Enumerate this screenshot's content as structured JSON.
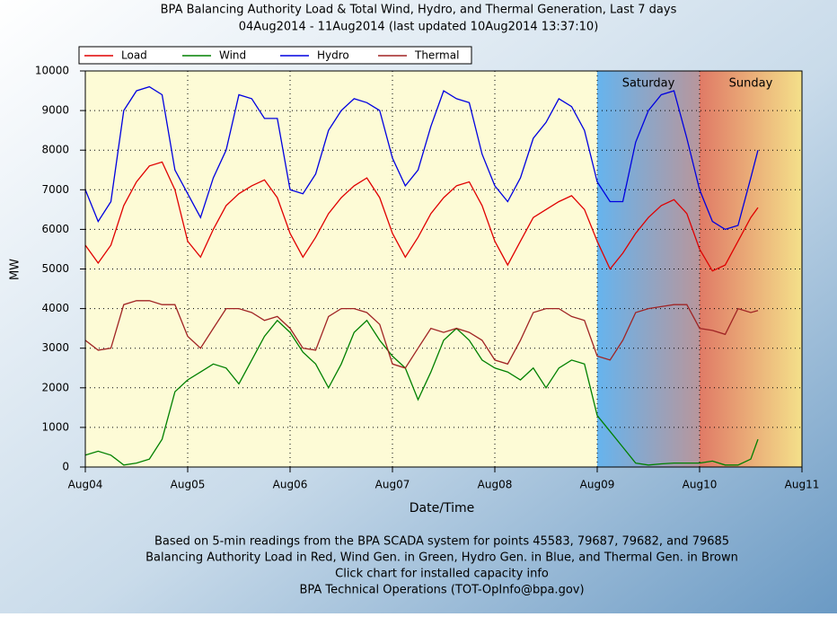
{
  "chart_data": {
    "type": "line",
    "title": "BPA Balancing Authority Load & Total Wind, Hydro, and Thermal Generation, Last 7 days",
    "subtitle": "04Aug2014 - 11Aug2014 (last updated 10Aug2014 13:37:10)",
    "x_label": "Date/Time",
    "y_label": "MW",
    "notes": [
      "Based on 5-min readings from the BPA SCADA system for points 45583, 79687, 79682, and 79685",
      "Balancing Authority Load in Red, Wind Gen. in Green, Hydro Gen. in Blue, and Thermal Gen. in Brown",
      "Click chart for installed capacity info",
      "BPA Technical Operations (TOT-OpInfo@bpa.gov)"
    ],
    "legend": "top",
    "grid": true,
    "xlim": [
      0,
      7
    ],
    "xticks": [
      {
        "value": 0,
        "label": "Aug04"
      },
      {
        "value": 1,
        "label": "Aug05"
      },
      {
        "value": 2,
        "label": "Aug06"
      },
      {
        "value": 3,
        "label": "Aug07"
      },
      {
        "value": 4,
        "label": "Aug08"
      },
      {
        "value": 5,
        "label": "Aug09"
      },
      {
        "value": 6,
        "label": "Aug10"
      },
      {
        "value": 7,
        "label": "Aug11"
      }
    ],
    "ylim": [
      0,
      10000
    ],
    "yticks": [
      0,
      1000,
      2000,
      3000,
      4000,
      5000,
      6000,
      7000,
      8000,
      9000,
      10000
    ],
    "shaded": [
      {
        "label": "Saturday",
        "x": [
          5,
          6
        ],
        "colors": [
          "#66b4ee",
          "#b8969c"
        ]
      },
      {
        "label": "Sunday",
        "x": [
          6,
          7
        ],
        "colors": [
          "#e07a66",
          "#f4e08a"
        ]
      }
    ],
    "x": [
      0,
      0.125,
      0.25,
      0.375,
      0.5,
      0.625,
      0.75,
      0.875,
      1,
      1.125,
      1.25,
      1.375,
      1.5,
      1.625,
      1.75,
      1.875,
      2,
      2.125,
      2.25,
      2.375,
      2.5,
      2.625,
      2.75,
      2.875,
      3,
      3.125,
      3.25,
      3.375,
      3.5,
      3.625,
      3.75,
      3.875,
      4,
      4.125,
      4.25,
      4.375,
      4.5,
      4.625,
      4.75,
      4.875,
      5,
      5.125,
      5.25,
      5.375,
      5.5,
      5.625,
      5.75,
      5.875,
      6,
      6.125,
      6.25,
      6.375,
      6.5,
      6.57
    ],
    "series": [
      {
        "name": "Load",
        "color": "#e00000",
        "values": [
          5600,
          5150,
          5600,
          6600,
          7200,
          7600,
          7700,
          7000,
          5700,
          5300,
          6000,
          6600,
          6900,
          7100,
          7250,
          6800,
          5900,
          5300,
          5800,
          6400,
          6800,
          7100,
          7300,
          6800,
          5900,
          5300,
          5800,
          6400,
          6800,
          7100,
          7200,
          6600,
          5700,
          5100,
          5700,
          6300,
          6500,
          6700,
          6850,
          6500,
          5700,
          5000,
          5400,
          5900,
          6300,
          6600,
          6750,
          6400,
          5500,
          4950,
          5100,
          5700,
          6300,
          6550
        ]
      },
      {
        "name": "Wind",
        "color": "#008000",
        "values": [
          300,
          400,
          300,
          50,
          100,
          200,
          700,
          1900,
          2200,
          2400,
          2600,
          2500,
          2100,
          2700,
          3300,
          3700,
          3400,
          2900,
          2600,
          2000,
          2600,
          3400,
          3700,
          3200,
          2800,
          2500,
          1700,
          2400,
          3200,
          3500,
          3200,
          2700,
          2500,
          2400,
          2200,
          2500,
          2000,
          2500,
          2700,
          2600,
          1300,
          900,
          500,
          100,
          50,
          80,
          100,
          100,
          100,
          150,
          50,
          50,
          200,
          700
        ]
      },
      {
        "name": "Hydro",
        "color": "#0000e0",
        "values": [
          7000,
          6200,
          6700,
          9000,
          9500,
          9600,
          9400,
          7500,
          6900,
          6300,
          7300,
          8000,
          9400,
          9300,
          8800,
          8800,
          7000,
          6900,
          7400,
          8500,
          9000,
          9300,
          9200,
          9000,
          7800,
          7100,
          7500,
          8600,
          9500,
          9300,
          9200,
          7900,
          7100,
          6700,
          7300,
          8300,
          8700,
          9300,
          9100,
          8500,
          7200,
          6700,
          6700,
          8200,
          9000,
          9400,
          9500,
          8300,
          7000,
          6200,
          6000,
          6100,
          7300,
          8000
        ]
      },
      {
        "name": "Thermal",
        "color": "#a02424",
        "values": [
          3200,
          2950,
          3000,
          4100,
          4200,
          4200,
          4100,
          4100,
          3300,
          3000,
          3500,
          4000,
          4000,
          3900,
          3700,
          3800,
          3500,
          3000,
          2950,
          3800,
          4000,
          4000,
          3900,
          3600,
          2600,
          2500,
          3000,
          3500,
          3400,
          3500,
          3400,
          3200,
          2700,
          2600,
          3200,
          3900,
          4000,
          4000,
          3800,
          3700,
          2800,
          2700,
          3200,
          3900,
          4000,
          4050,
          4100,
          4100,
          3500,
          3450,
          3350,
          4000,
          3900,
          3950
        ]
      }
    ]
  }
}
